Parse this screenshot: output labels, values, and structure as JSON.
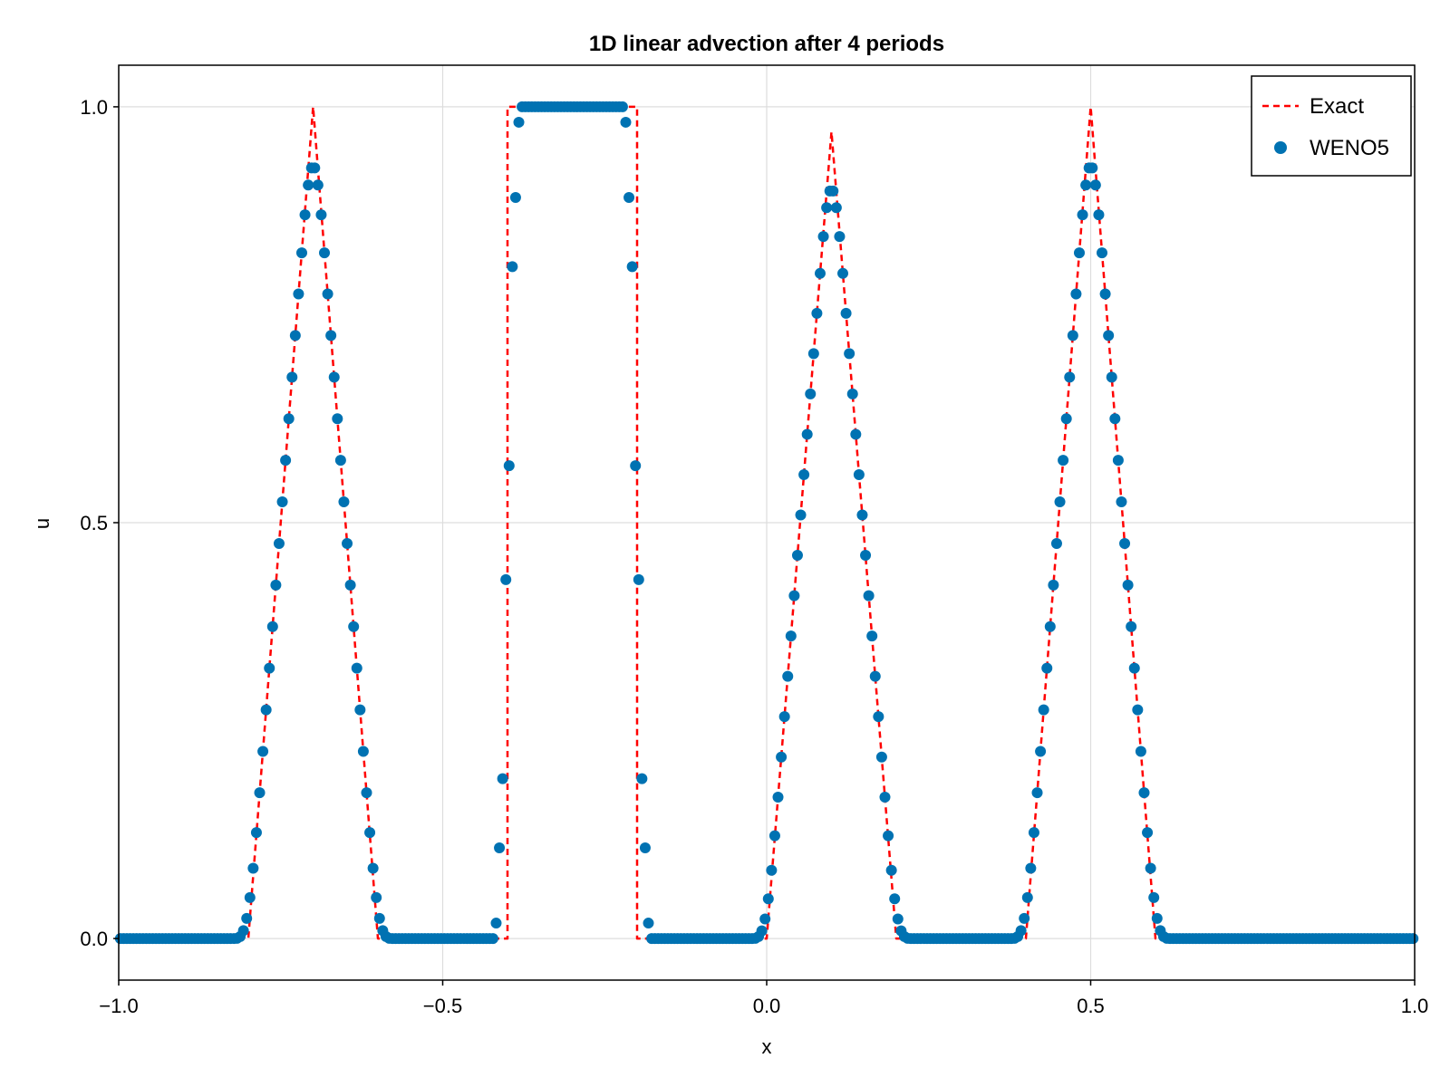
{
  "chart_data": {
    "type": "line",
    "title": "1D linear advection after 4 periods",
    "xlabel": "x",
    "ylabel": "u",
    "xlim": [
      -1.0,
      1.0
    ],
    "ylim": [
      -0.05,
      1.05
    ],
    "x_ticks": [
      -1.0,
      -0.5,
      0.0,
      0.5,
      1.0
    ],
    "x_tick_labels": [
      "−1.0",
      "−0.5",
      "0.0",
      "0.5",
      "1.0"
    ],
    "y_ticks": [
      0.0,
      0.5,
      1.0
    ],
    "y_tick_labels": [
      "0.0",
      "0.5",
      "1.0"
    ],
    "grid": true,
    "legend_position": "top-right",
    "n_cells": 400,
    "series": [
      {
        "name": "Exact",
        "style": "dashed-line",
        "color": "#ff0000",
        "x": [
          -1.0,
          -0.8,
          -0.7,
          -0.6,
          -0.4,
          -0.4,
          -0.2,
          -0.2,
          0.0,
          0.1,
          0.2,
          0.4,
          0.5,
          0.6,
          1.0
        ],
        "y": [
          0.0,
          0.0,
          1.0,
          0.0,
          0.0,
          1.0,
          1.0,
          0.0,
          0.0,
          0.97,
          0.0,
          0.0,
          1.0,
          0.0,
          0.0
        ]
      },
      {
        "name": "WENO5",
        "style": "markers",
        "color": "#0072b2"
      }
    ]
  }
}
